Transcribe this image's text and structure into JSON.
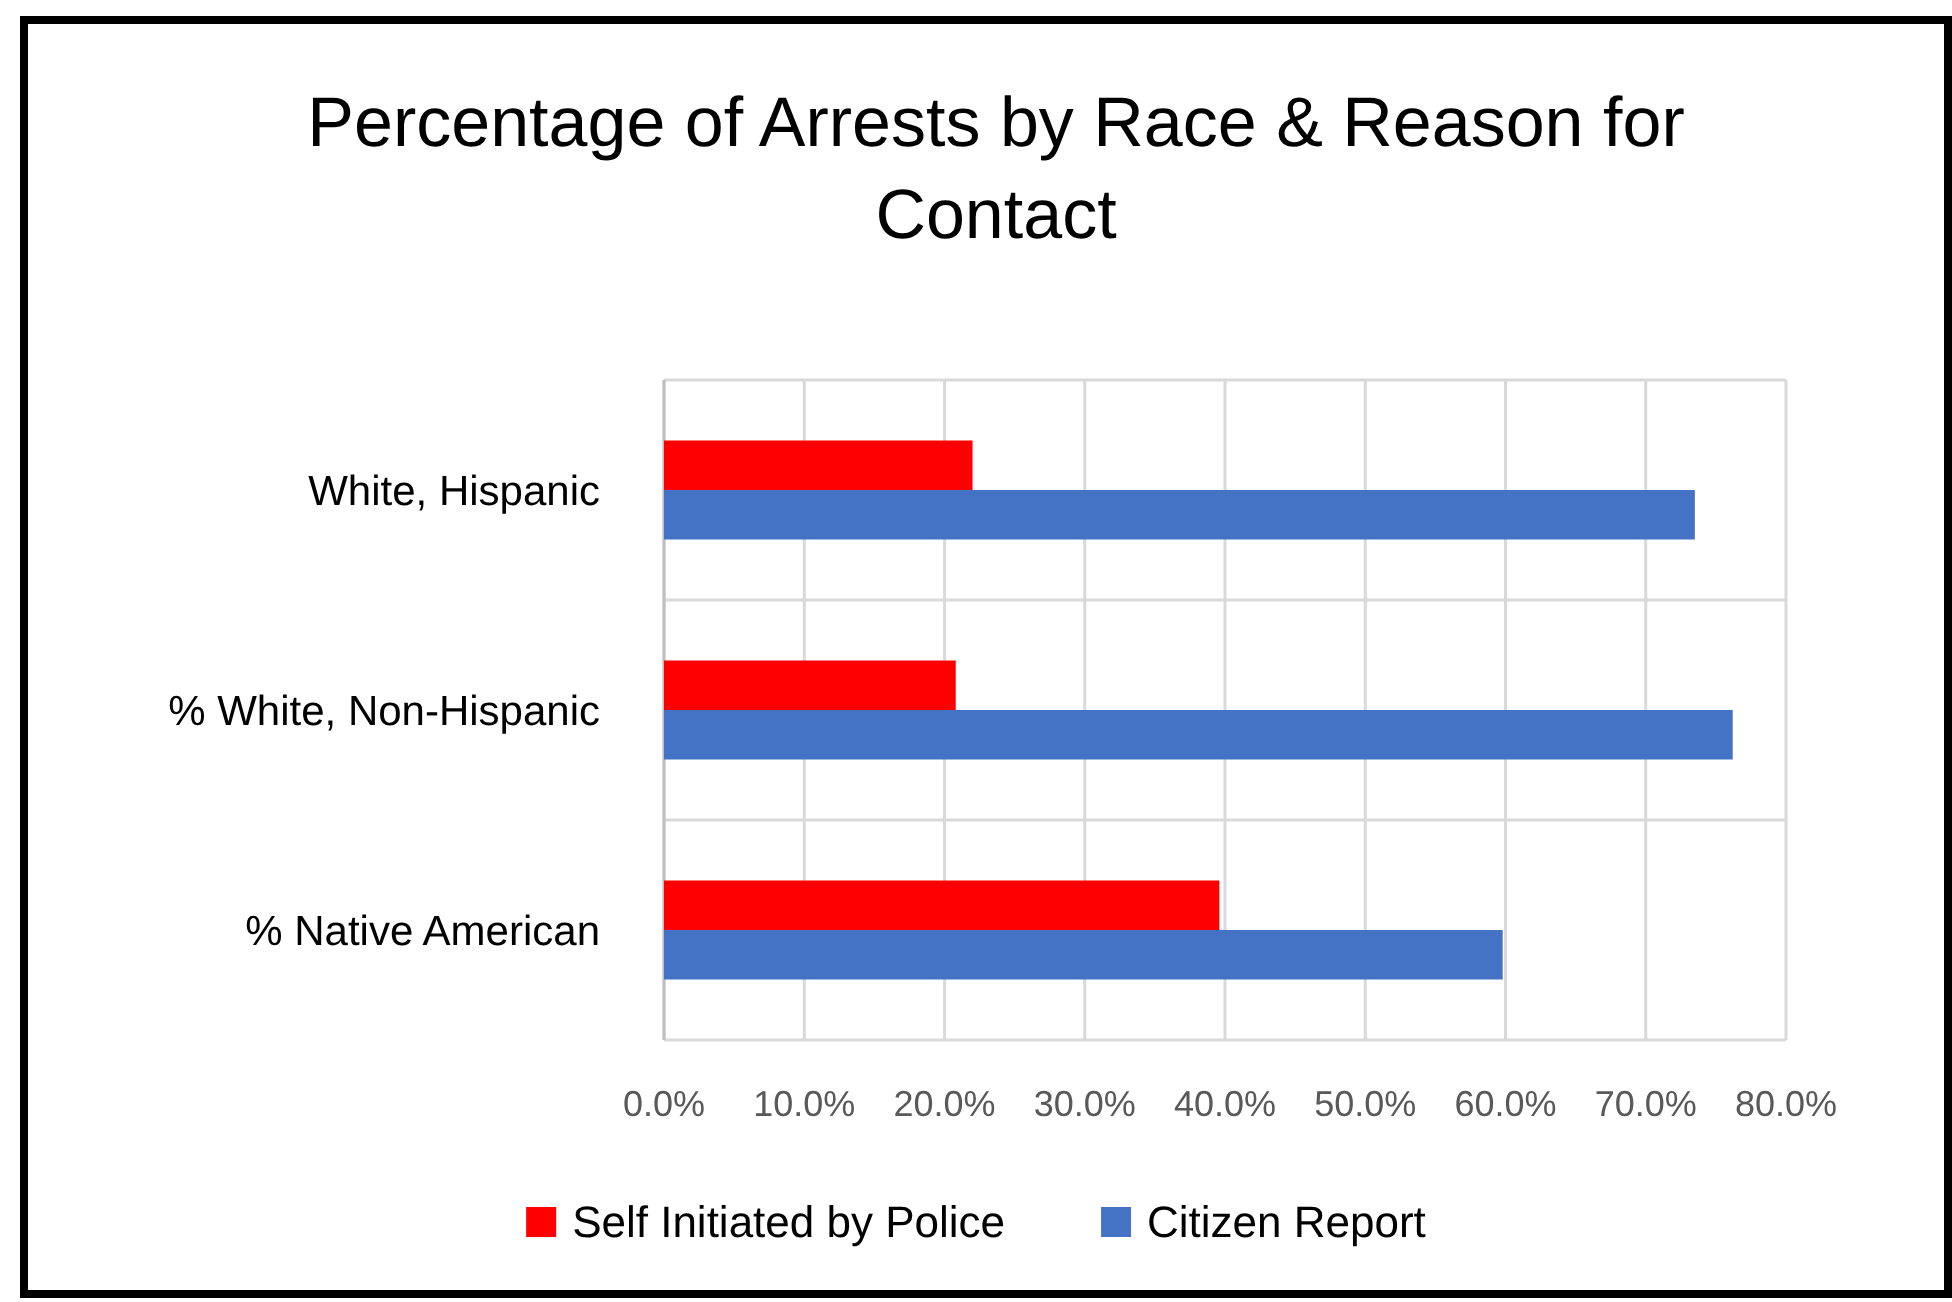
{
  "chart_data": {
    "type": "bar",
    "orientation": "horizontal",
    "title": "Percentage of Arrests by Race & Reason for Contact",
    "categories": [
      "White, Hispanic",
      "% White, Non-Hispanic",
      "% Native American"
    ],
    "series": [
      {
        "name": "Self Initiated by Police",
        "color": "#ff0000",
        "values": [
          22.0,
          20.8,
          39.6
        ]
      },
      {
        "name": "Citizen Report",
        "color": "#4472c4",
        "values": [
          73.5,
          76.2,
          59.8
        ]
      }
    ],
    "xlim": [
      0,
      80
    ],
    "xticks": [
      {
        "value": 0,
        "label": "0.0%"
      },
      {
        "value": 10,
        "label": "10.0%"
      },
      {
        "value": 20,
        "label": "20.0%"
      },
      {
        "value": 30,
        "label": "30.0%"
      },
      {
        "value": 40,
        "label": "40.0%"
      },
      {
        "value": 50,
        "label": "50.0%"
      },
      {
        "value": 60,
        "label": "60.0%"
      },
      {
        "value": 70,
        "label": "70.0%"
      },
      {
        "value": 80,
        "label": "80.0%"
      }
    ],
    "grid": true,
    "legend": "bottom"
  }
}
